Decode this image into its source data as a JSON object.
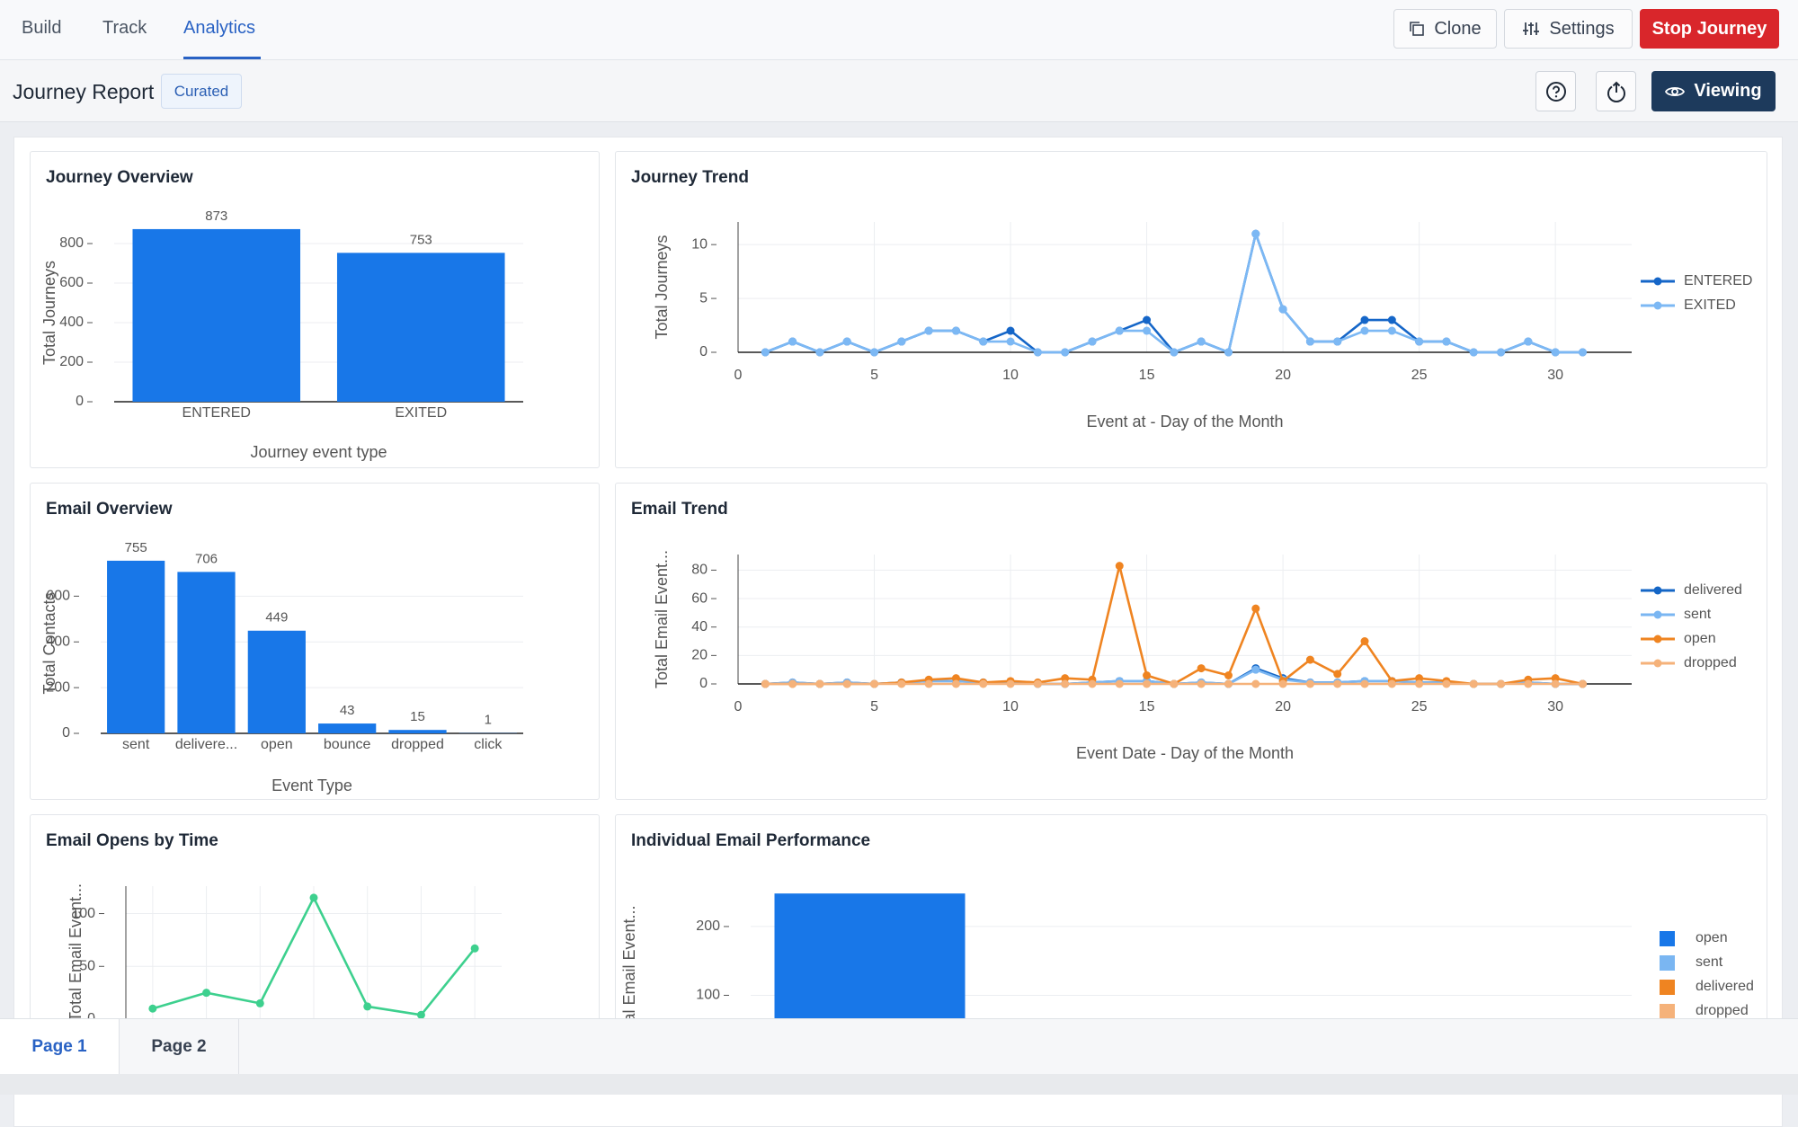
{
  "nav": {
    "tabs": [
      "Build",
      "Track",
      "Analytics"
    ],
    "actions": [
      "Clone",
      "Settings",
      "Stop Journey"
    ]
  },
  "header": {
    "title": "Journey Report",
    "badge": "Curated",
    "view_button": "Viewing"
  },
  "chart_data": [
    {
      "type": "bar",
      "title": "Journey Overview",
      "x_label": "Journey event type",
      "y_label": "Total Journeys",
      "categories": [
        "ENTERED",
        "EXITED"
      ],
      "values": [
        873,
        753
      ],
      "color": "#1877e8",
      "bar_labels": true,
      "ylim": [
        0,
        900
      ],
      "yticks": [
        0,
        200,
        400,
        600,
        800
      ],
      "grid": true
    },
    {
      "type": "line",
      "title": "Journey Trend",
      "x_label": "Event at - Day of the Month",
      "y_label": "Total Journeys",
      "x": [
        1,
        2,
        3,
        4,
        5,
        6,
        7,
        8,
        9,
        10,
        11,
        12,
        13,
        14,
        15,
        16,
        17,
        18,
        19,
        20,
        21,
        22,
        23,
        24,
        25,
        26,
        27,
        28,
        29,
        30,
        31
      ],
      "series": [
        {
          "name": "ENTERED",
          "color": "#1566c8",
          "values": [
            0,
            1,
            0,
            1,
            0,
            1,
            2,
            2,
            1,
            2,
            0,
            0,
            1,
            2,
            3,
            0,
            1,
            0,
            11,
            4,
            1,
            1,
            3,
            3,
            1,
            1,
            0,
            0,
            1,
            0,
            0
          ]
        },
        {
          "name": "EXITED",
          "color": "#7cb8f4",
          "values": [
            0,
            1,
            0,
            1,
            0,
            1,
            2,
            2,
            1,
            1,
            0,
            0,
            1,
            2,
            2,
            0,
            1,
            0,
            11,
            4,
            1,
            1,
            2,
            2,
            1,
            1,
            0,
            0,
            1,
            0,
            0
          ]
        }
      ],
      "xlim": [
        0,
        32.8
      ],
      "ylim": [
        0,
        12.1
      ],
      "xticks": [
        0,
        5,
        10,
        15,
        20,
        25,
        30
      ],
      "yticks": [
        0,
        5,
        10
      ],
      "grid": true,
      "legend": "right"
    },
    {
      "type": "bar",
      "title": "Email Overview",
      "x_label": "Event Type",
      "y_label": "Total Contacts",
      "categories": [
        "sent",
        "delivere...",
        "open",
        "bounce",
        "dropped",
        "click"
      ],
      "values": [
        755,
        706,
        449,
        43,
        15,
        1
      ],
      "color": "#1877e8",
      "bar_labels": true,
      "ylim": [
        0,
        790
      ],
      "yticks": [
        0,
        200,
        400,
        600
      ],
      "grid": true
    },
    {
      "type": "line",
      "title": "Email Trend",
      "x_label": "Event Date - Day of the Month",
      "y_label": "Total Email Event...",
      "x": [
        1,
        2,
        3,
        4,
        5,
        6,
        7,
        8,
        9,
        10,
        11,
        12,
        13,
        14,
        15,
        16,
        17,
        18,
        19,
        20,
        21,
        22,
        23,
        24,
        25,
        26,
        27,
        28,
        29,
        30,
        31
      ],
      "series": [
        {
          "name": "delivered",
          "color": "#1466c6",
          "values": [
            0,
            1,
            0,
            1,
            0,
            1,
            2,
            2,
            1,
            1,
            0,
            0,
            1,
            2,
            2,
            0,
            1,
            0,
            11,
            4,
            1,
            1,
            2,
            2,
            1,
            1,
            0,
            0,
            1,
            0,
            0
          ]
        },
        {
          "name": "sent",
          "color": "#7ab6f2",
          "values": [
            0,
            1,
            0,
            1,
            0,
            1,
            2,
            2,
            1,
            1,
            0,
            0,
            1,
            2,
            2,
            0,
            1,
            0,
            10,
            3,
            1,
            1,
            2,
            2,
            1,
            1,
            0,
            0,
            1,
            0,
            0
          ]
        },
        {
          "name": "open",
          "color": "#ef8421",
          "values": [
            0,
            0,
            0,
            0,
            0,
            1,
            3,
            4,
            1,
            2,
            1,
            4,
            3,
            83,
            6,
            0,
            11,
            6,
            53,
            2,
            17,
            7,
            30,
            2,
            4,
            2,
            0,
            0,
            3,
            4,
            0
          ]
        },
        {
          "name": "dropped",
          "color": "#f5b27a",
          "values": [
            0,
            0,
            0,
            0,
            0,
            0,
            0,
            0,
            0,
            0,
            0,
            0,
            0,
            0,
            0,
            0,
            0,
            0,
            0,
            0,
            0,
            0,
            0,
            0,
            0,
            0,
            0,
            0,
            0,
            0,
            0
          ]
        }
      ],
      "xlim": [
        0,
        32.8
      ],
      "ylim": [
        0,
        91
      ],
      "xticks": [
        0,
        5,
        10,
        15,
        20,
        25,
        30
      ],
      "yticks": [
        0,
        20,
        40,
        60,
        80
      ],
      "grid": true,
      "legend": "right"
    },
    {
      "type": "line",
      "title": "Email Opens by Time",
      "y_label": "Total Email Event...",
      "categories": [
        null,
        null,
        null,
        null,
        null,
        null,
        null
      ],
      "values": [
        10,
        25,
        15,
        115,
        12,
        4,
        67
      ],
      "color": "#3dd08e",
      "ylim": [
        0,
        126
      ],
      "yticks": [
        0,
        50,
        100
      ],
      "grid": true
    },
    {
      "type": "bar",
      "title": "Individual Email Performance",
      "y_label": "Total Email Event...",
      "categories": [
        null
      ],
      "series": [
        {
          "name": "open",
          "color": "#1877e8",
          "values": [
            248
          ]
        },
        {
          "name": "sent",
          "color": "#7ab6f2",
          "values": [
            null
          ]
        },
        {
          "name": "delivered",
          "color": "#ef8421",
          "values": [
            null
          ]
        },
        {
          "name": "dropped",
          "color": "#f5b27a",
          "values": [
            null
          ]
        }
      ],
      "ylim": [
        0,
        260
      ],
      "yticks": [
        100,
        200
      ],
      "grid": true,
      "legend": "right"
    }
  ],
  "pages": [
    "Page 1",
    "Page 2"
  ]
}
